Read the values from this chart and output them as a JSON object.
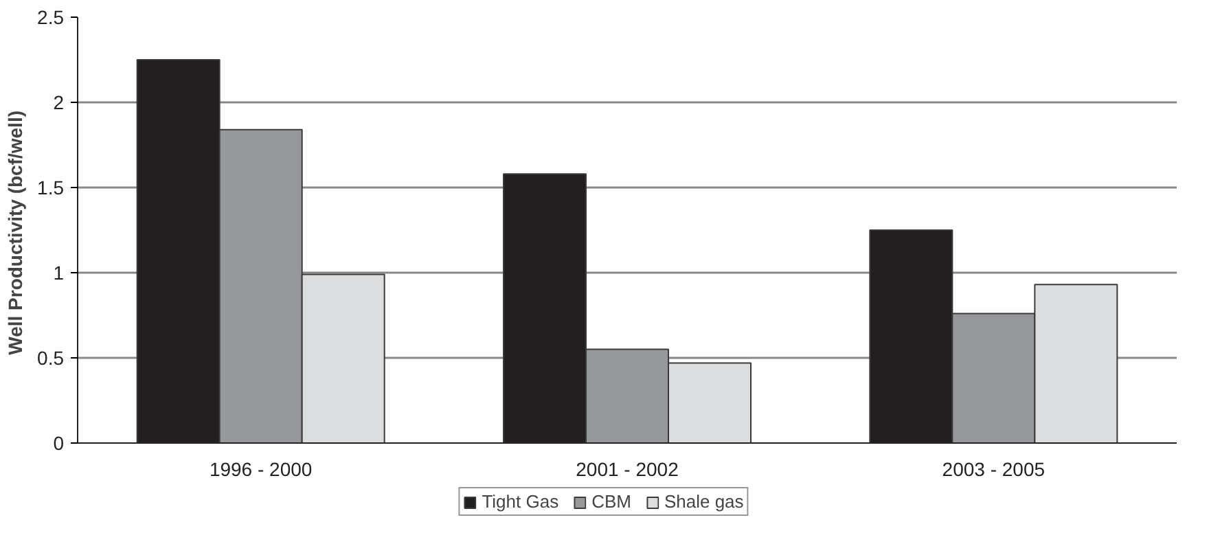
{
  "chart_data": {
    "type": "bar",
    "ylabel": "Well Productivity  (bcf/well)",
    "categories": [
      "1996 - 2000",
      "2001 - 2002",
      "2003 - 2005"
    ],
    "series": [
      {
        "name": "Tight Gas",
        "color": "#231f20",
        "values": [
          2.25,
          1.58,
          1.25
        ]
      },
      {
        "name": "CBM",
        "color": "#97989b",
        "values": [
          1.84,
          0.55,
          0.76
        ]
      },
      {
        "name": "Shale gas",
        "color": "#dcdddf",
        "values": [
          0.99,
          0.47,
          0.93
        ]
      }
    ],
    "ylim": [
      0,
      2.5
    ],
    "yticks": [
      0,
      0.5,
      1,
      1.5,
      2,
      2.5
    ],
    "grid": "y",
    "legend": "bottom"
  }
}
